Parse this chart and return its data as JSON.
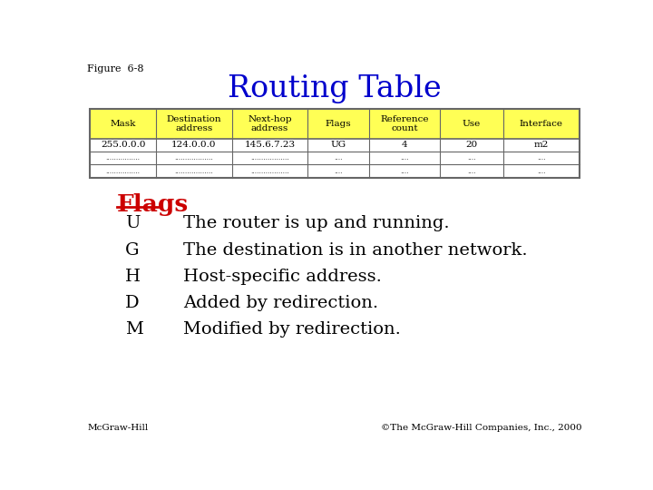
{
  "figure_label": "Figure  6-8",
  "title": "Routing Table",
  "title_color": "#0000CC",
  "title_fontsize": 24,
  "background_color": "#ffffff",
  "table": {
    "headers": [
      "Mask",
      "Destination\naddress",
      "Next-hop\naddress",
      "Flags",
      "Reference\ncount",
      "Use",
      "Interface"
    ],
    "header_bg": "#FFFF55",
    "header_color": "#000000",
    "row1": [
      "255.0.0.0",
      "124.0.0.0",
      "145.6.7.23",
      "UG",
      "4",
      "20",
      "m2"
    ],
    "row2": [
      "................",
      "..................",
      "..................",
      "....",
      "....",
      "....",
      "...."
    ],
    "row3": [
      "................",
      "..................",
      "..................",
      "....",
      "....",
      "....",
      "...."
    ],
    "border_color": "#666666",
    "cell_bg": "#ffffff"
  },
  "flags_title": "Flags",
  "flags_title_color": "#CC0000",
  "flags": [
    [
      "U",
      "The router is up and running."
    ],
    [
      "G",
      "The destination is in another network."
    ],
    [
      "H",
      "Host-specific address."
    ],
    [
      "D",
      "Added by redirection."
    ],
    [
      "M",
      "Modified by redirection."
    ]
  ],
  "footer_left": "McGraw-Hill",
  "footer_right": "©The McGraw-Hill Companies, Inc., 2000",
  "footer_color": "#000000",
  "footer_fontsize": 7.5
}
